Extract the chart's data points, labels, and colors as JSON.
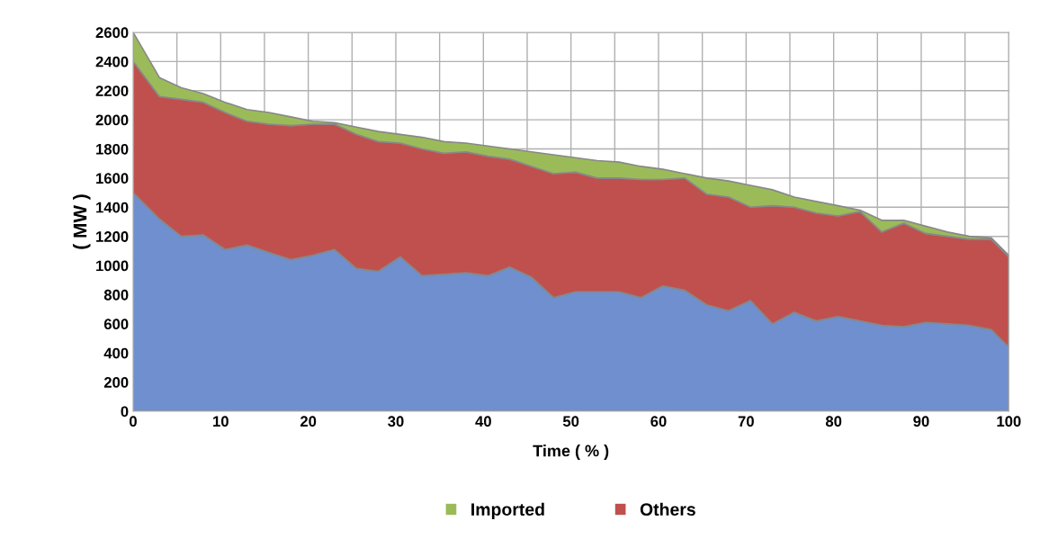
{
  "chart_data": {
    "type": "area",
    "stacked": true,
    "xlabel": "Time ( % )",
    "ylabel": "( MW )",
    "x": [
      0,
      3,
      5.5,
      8,
      10.5,
      13,
      15.5,
      18,
      20.5,
      23,
      25.5,
      28,
      30.5,
      33,
      35.5,
      38,
      40.5,
      43,
      45.5,
      48,
      50.5,
      53,
      55.5,
      58,
      60.5,
      63,
      65.5,
      68,
      70.5,
      73,
      75.5,
      78,
      80.5,
      83,
      85.5,
      88,
      90.5,
      93,
      95.5,
      98,
      100
    ],
    "series": [
      {
        "color": "#6f8fcf",
        "values": [
          1500,
          1320,
          1200,
          1210,
          1110,
          1140,
          1090,
          1040,
          1070,
          1110,
          980,
          960,
          1060,
          930,
          940,
          950,
          930,
          990,
          920,
          780,
          820,
          820,
          820,
          780,
          860,
          830,
          730,
          690,
          760,
          600,
          680,
          620,
          650,
          620,
          590,
          580,
          610,
          600,
          590,
          560,
          440
        ]
      },
      {
        "name": "Others",
        "color": "#c0504d",
        "values": [
          900,
          840,
          940,
          910,
          940,
          850,
          880,
          920,
          900,
          860,
          920,
          890,
          780,
          870,
          830,
          830,
          820,
          740,
          760,
          850,
          820,
          780,
          780,
          810,
          730,
          770,
          760,
          780,
          640,
          810,
          720,
          740,
          690,
          750,
          640,
          710,
          610,
          600,
          590,
          620,
          620
        ]
      },
      {
        "name": "Imported",
        "color": "#9bbb59",
        "values": [
          200,
          130,
          80,
          60,
          70,
          80,
          80,
          60,
          20,
          10,
          50,
          70,
          60,
          80,
          80,
          60,
          70,
          70,
          100,
          130,
          100,
          120,
          110,
          90,
          70,
          30,
          110,
          110,
          150,
          110,
          70,
          80,
          70,
          10,
          80,
          20,
          50,
          30,
          20,
          10,
          10
        ]
      }
    ],
    "xlim": [
      0,
      100
    ],
    "ylim": [
      0,
      2600
    ],
    "xticks": [
      0,
      {
        "value": 5,
        "label": null
      },
      10,
      {
        "value": 15,
        "label": null
      },
      20,
      {
        "value": 25,
        "label": null
      },
      30,
      {
        "value": 35,
        "label": null
      },
      40,
      {
        "value": 45,
        "label": null
      },
      50,
      {
        "value": 55,
        "label": null
      },
      60,
      {
        "value": 65,
        "label": null
      },
      70,
      {
        "value": 75,
        "label": null
      },
      80,
      {
        "value": 85,
        "label": null
      },
      90,
      {
        "value": 95,
        "label": null
      },
      100
    ],
    "yticks": [
      0,
      200,
      400,
      600,
      800,
      1000,
      1200,
      1400,
      1600,
      1800,
      2000,
      2200,
      2400,
      2600
    ],
    "grid": true,
    "legend": "bottom"
  }
}
